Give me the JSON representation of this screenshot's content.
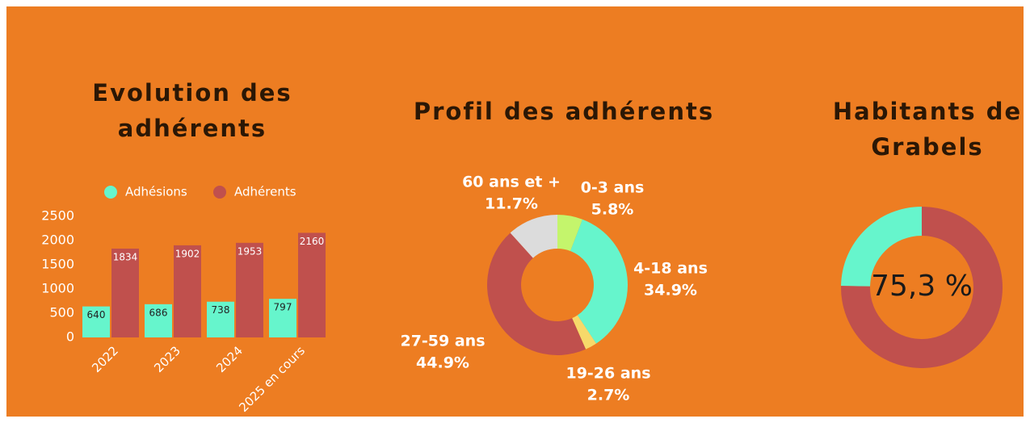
{
  "chart_data": [
    {
      "type": "bar",
      "title": "Evolution des adhérents",
      "categories": [
        "2022",
        "2023",
        "2024",
        "2025 en cours"
      ],
      "series": [
        {
          "name": "Adhésions",
          "color": "#66f5cc",
          "values": [
            640,
            686,
            738,
            797
          ]
        },
        {
          "name": "Adhérents",
          "color": "#c0504d",
          "values": [
            1834,
            1902,
            1953,
            2160
          ]
        }
      ],
      "ylim": [
        0,
        2500
      ],
      "yticks": [
        0,
        500,
        1000,
        1500,
        2000,
        2500
      ],
      "grid": false,
      "legend": "top"
    },
    {
      "type": "donut",
      "title": "Profil des adhérents",
      "categories": [
        "0-3 ans",
        "4-18 ans",
        "19-26 ans",
        "27-59 ans",
        "60 ans et +"
      ],
      "values": [
        5.8,
        34.9,
        2.7,
        44.9,
        11.7
      ],
      "value_labels": [
        "5.8%",
        "34.9%",
        "2.7%",
        "44.9%",
        "11.7%"
      ],
      "colors": [
        "#c4f56c",
        "#66f5cc",
        "#f7d96a",
        "#c0504d",
        "#dcdcdc"
      ]
    },
    {
      "type": "gauge",
      "title": "Habitants de Grabels",
      "value": 75.3,
      "value_label": "75,3 %",
      "range": [
        0,
        100
      ],
      "color": "#c0504d",
      "track_color": "#66f5cc"
    }
  ]
}
